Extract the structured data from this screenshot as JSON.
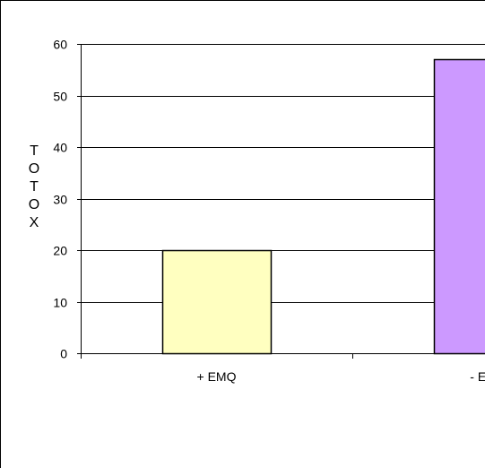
{
  "chart_data": {
    "type": "bar",
    "title": "",
    "xlabel": "",
    "ylabel": "TOTOX",
    "categories": [
      "+ EMQ",
      "- EMQ"
    ],
    "values": [
      20,
      57
    ],
    "ylim": [
      0,
      60
    ],
    "yticks": [
      0,
      10,
      20,
      30,
      40,
      50,
      60
    ],
    "grid": true,
    "legend": "none",
    "bar_colors": [
      "#FFFFC0",
      "#CC99FF"
    ],
    "bar_edge_color": "#000000",
    "grid_color": "#000000"
  }
}
